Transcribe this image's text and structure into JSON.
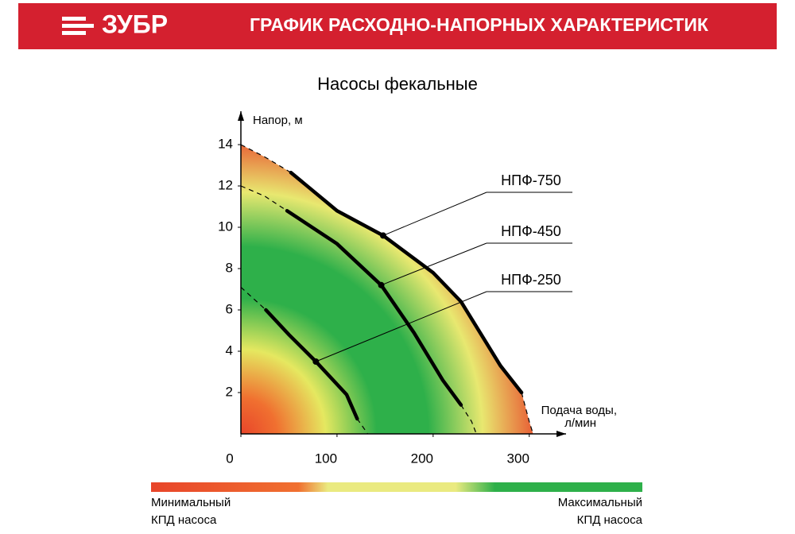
{
  "header": {
    "brand": "ЗУБР",
    "title": "ГРАФИК РАСХОДНО-НАПОРНЫХ ХАРАКТЕРИСТИК"
  },
  "chart_data": {
    "type": "line",
    "title": "Насосы фекальные",
    "y_label": "Напор, м",
    "x_label": [
      "Подача воды,",
      "л/мин"
    ],
    "xlim": [
      0,
      330
    ],
    "ylim": [
      0,
      15.5
    ],
    "xticks": [
      0,
      100,
      200,
      300
    ],
    "yticks": [
      2,
      4,
      6,
      8,
      10,
      12,
      14
    ],
    "series": [
      {
        "name": "НПФ-750",
        "color": "#000000",
        "x": [
          52,
          100,
          148,
          200,
          229,
          270,
          292
        ],
        "values": [
          12.65,
          10.8,
          9.6,
          7.8,
          6.4,
          3.3,
          2
        ],
        "dashed_start": {
          "x": [
            0,
            25,
            52
          ],
          "values": [
            14,
            13.4,
            12.65
          ]
        },
        "dashed_end": {
          "x": [
            292,
            300,
            304
          ],
          "values": [
            2,
            0.6,
            0
          ]
        }
      },
      {
        "name": "НПФ-450",
        "color": "#000000",
        "x": [
          48,
          100,
          146,
          180,
          210,
          229
        ],
        "values": [
          10.8,
          9.2,
          7.2,
          4.9,
          2.6,
          1.4
        ],
        "dashed_start": {
          "x": [
            0,
            25,
            48
          ],
          "values": [
            12,
            11.5,
            10.8
          ]
        },
        "dashed_end": {
          "x": [
            229,
            240,
            245
          ],
          "values": [
            1.4,
            0.6,
            0
          ]
        }
      },
      {
        "name": "НПФ-250",
        "color": "#000000",
        "x": [
          26,
          50,
          78,
          110,
          121
        ],
        "values": [
          6,
          4.8,
          3.5,
          1.9,
          0.73
        ],
        "dashed_start": {
          "x": [
            0,
            26
          ],
          "values": [
            7.1,
            6
          ]
        },
        "dashed_end": {
          "x": [
            121,
            132
          ],
          "values": [
            0.73,
            0
          ]
        }
      }
    ]
  },
  "legend": {
    "min_label": [
      "Минимальный",
      "КПД насоса"
    ],
    "max_label": [
      "Максимальный",
      "КПД насоса"
    ]
  }
}
